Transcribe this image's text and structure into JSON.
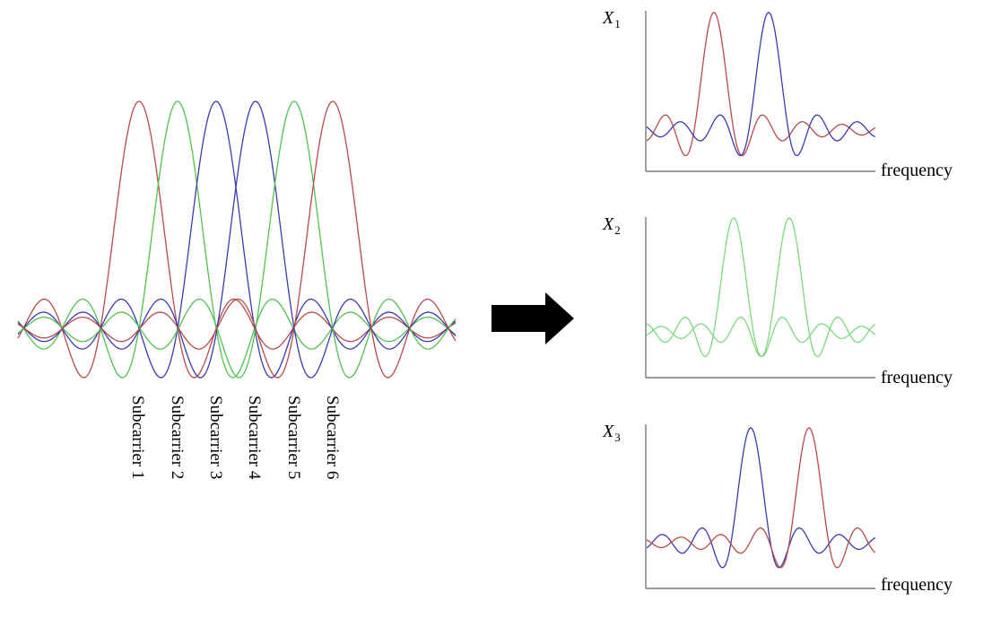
{
  "colors": {
    "red": "#b84a4a",
    "green": "#4ec24e",
    "blue": "#3a3ab0",
    "light_green": "#7ed87e"
  },
  "subcarriers": [
    {
      "label": "Subcarrier 1",
      "color": "red"
    },
    {
      "label": "Subcarrier 2",
      "color": "green"
    },
    {
      "label": "Subcarrier 3",
      "color": "blue"
    },
    {
      "label": "Subcarrier 4",
      "color": "blue"
    },
    {
      "label": "Subcarrier 5",
      "color": "green"
    },
    {
      "label": "Subcarrier 6",
      "color": "red"
    }
  ],
  "arrow_icon": "right-arrow-icon",
  "panels": [
    {
      "var": "X",
      "sub": "1",
      "xlabel": "frequency",
      "traces": [
        {
          "color": "red",
          "subcarrier": 1
        },
        {
          "color": "blue",
          "subcarrier": 2
        }
      ]
    },
    {
      "var": "X",
      "sub": "2",
      "xlabel": "frequency",
      "traces": [
        {
          "color": "light_green",
          "subcarrier": 1
        },
        {
          "color": "light_green",
          "subcarrier": 2
        }
      ]
    },
    {
      "var": "X",
      "sub": "3",
      "xlabel": "frequency",
      "traces": [
        {
          "color": "blue",
          "subcarrier": 1
        },
        {
          "color": "red",
          "subcarrier": 2
        }
      ]
    }
  ]
}
